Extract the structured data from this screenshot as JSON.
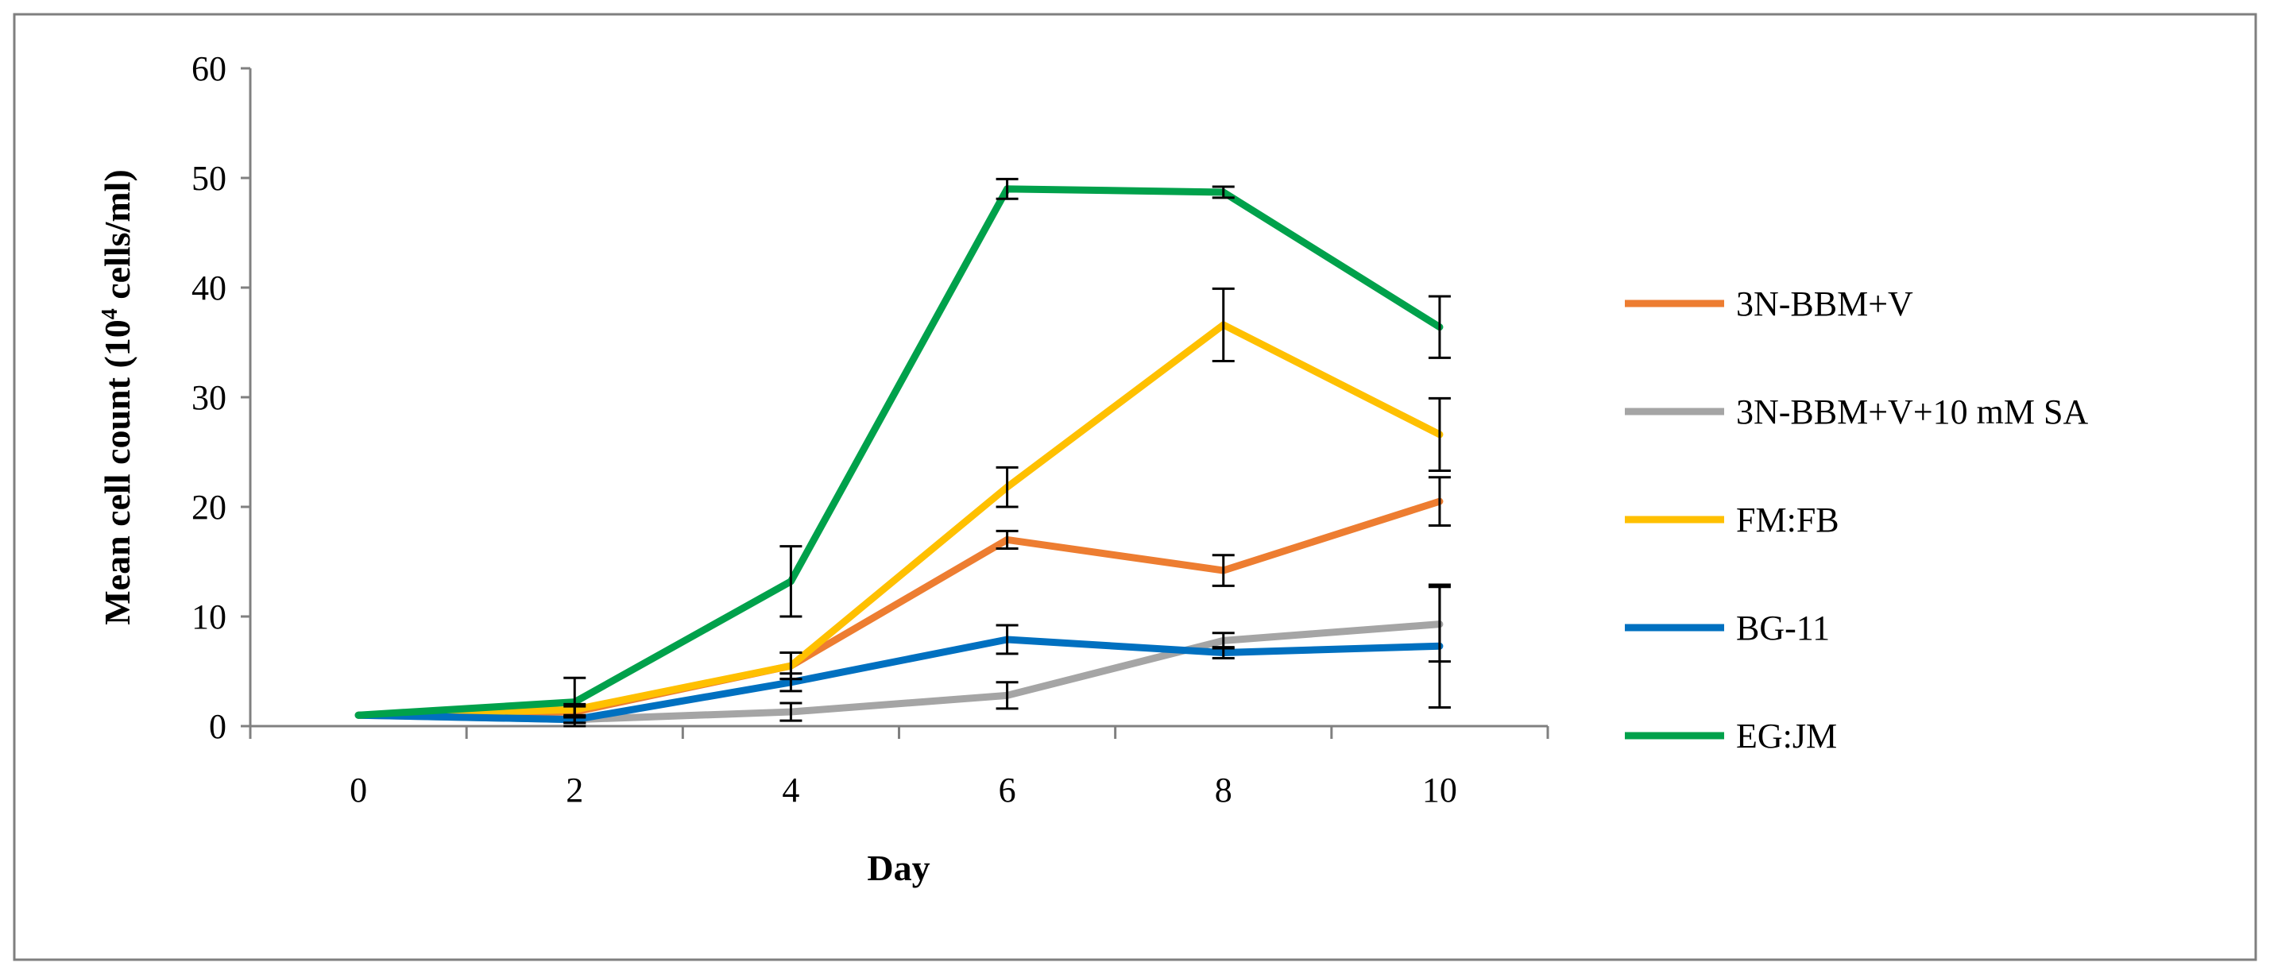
{
  "chart_data": {
    "type": "line",
    "title": "",
    "xlabel": "Day",
    "ylabel_main": "Mean cell count (10",
    "ylabel_sup": "4",
    "ylabel_tail": " cells/ml)",
    "x": [
      0,
      2,
      4,
      6,
      8,
      10
    ],
    "x_tick_labels": [
      "0",
      "2",
      "4",
      "6",
      "8",
      "10"
    ],
    "ylim": [
      0,
      60
    ],
    "y_ticks": [
      0,
      10,
      20,
      30,
      40,
      50,
      60
    ],
    "y_tick_labels": [
      "0",
      "10",
      "20",
      "30",
      "40",
      "50",
      "60"
    ],
    "grid": false,
    "legend_position": "right",
    "series": [
      {
        "name": "3N-BBM+V",
        "color": "#ED7D31",
        "values": [
          1,
          1.3,
          5.5,
          17,
          14.2,
          20.5
        ],
        "errors": [
          0,
          0.5,
          1.2,
          0.8,
          1.4,
          2.2
        ]
      },
      {
        "name": "3N-BBM+V+10 mM SA",
        "color": "#A5A5A5",
        "values": [
          1,
          0.6,
          1.3,
          2.8,
          7.8,
          9.3
        ],
        "errors": [
          0,
          0.3,
          0.8,
          1.2,
          0.7,
          3.4
        ]
      },
      {
        "name": "FM:FB",
        "color": "#FFC000",
        "values": [
          1,
          1.5,
          5.5,
          21.8,
          36.6,
          26.6
        ],
        "errors": [
          0,
          0.5,
          1.2,
          1.8,
          3.3,
          3.3
        ]
      },
      {
        "name": "BG-11",
        "color": "#0070C0",
        "values": [
          1,
          0.6,
          4,
          7.9,
          6.7,
          7.3
        ],
        "errors": [
          0,
          0.3,
          0.8,
          1.3,
          0.5,
          5.6
        ]
      },
      {
        "name": "EG:JM",
        "color": "#00A14B",
        "values": [
          1,
          2.2,
          13.2,
          49,
          48.7,
          36.4
        ],
        "errors": [
          0,
          2.2,
          3.2,
          0.9,
          0.5,
          2.8
        ]
      }
    ]
  }
}
